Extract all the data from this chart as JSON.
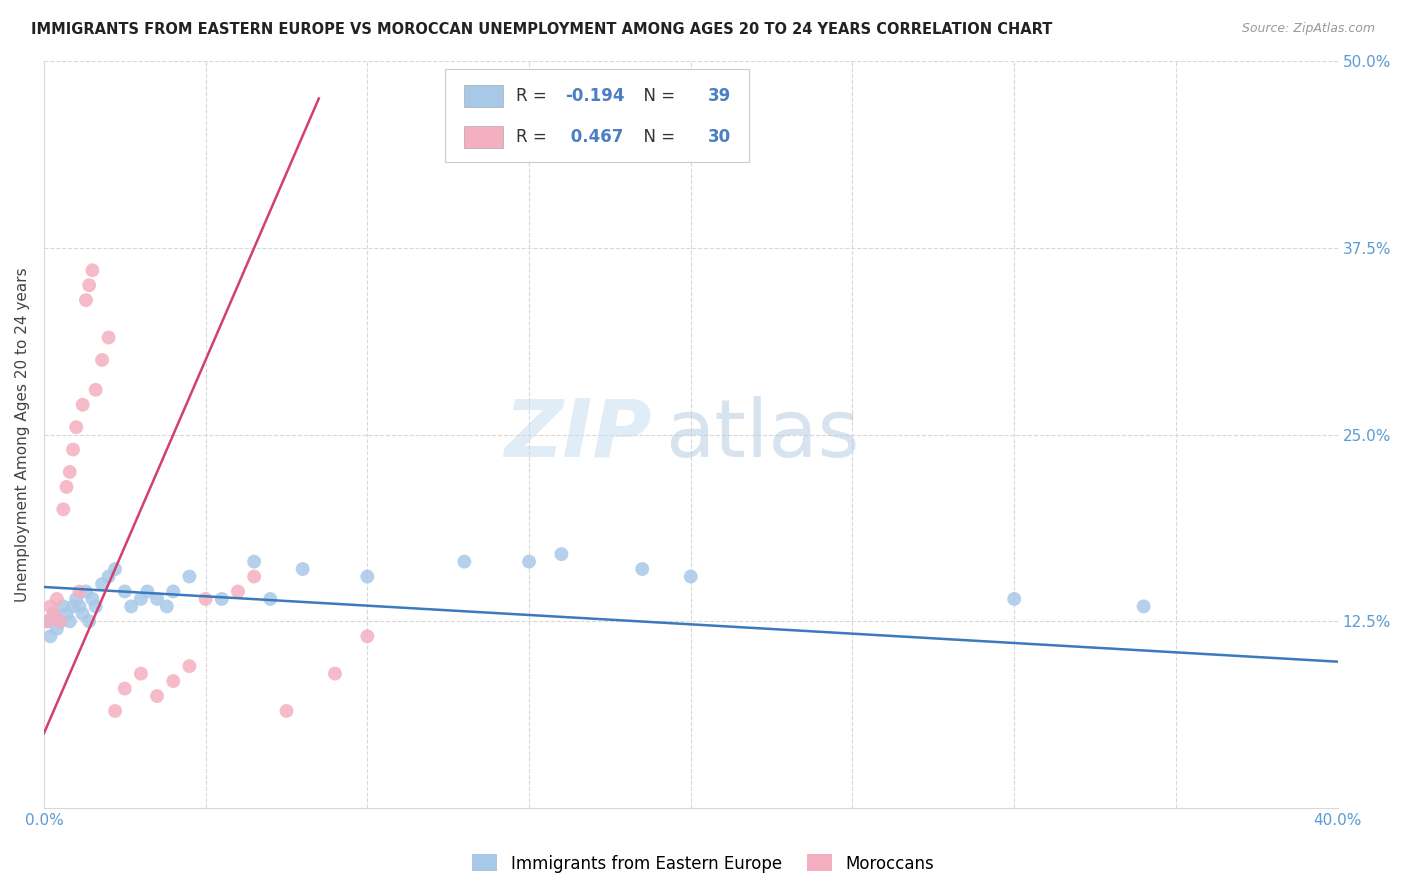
{
  "title": "IMMIGRANTS FROM EASTERN EUROPE VS MOROCCAN UNEMPLOYMENT AMONG AGES 20 TO 24 YEARS CORRELATION CHART",
  "source": "Source: ZipAtlas.com",
  "ylabel": "Unemployment Among Ages 20 to 24 years",
  "xlim": [
    0.0,
    0.4
  ],
  "ylim": [
    0.0,
    0.5
  ],
  "xtick_values": [
    0.0,
    0.05,
    0.1,
    0.15,
    0.2,
    0.25,
    0.3,
    0.35,
    0.4
  ],
  "xtick_labels": [
    "0.0%",
    "",
    "",
    "",
    "",
    "",
    "",
    "",
    "40.0%"
  ],
  "ytick_right_values": [
    0.5,
    0.375,
    0.25,
    0.125,
    0.0
  ],
  "ytick_right_labels": [
    "50.0%",
    "37.5%",
    "25.0%",
    "12.5%",
    ""
  ],
  "blue_scatter_color": "#a8c8e8",
  "pink_scatter_color": "#f4b0c0",
  "blue_line_color": "#3a7abd",
  "pink_line_color": "#d04070",
  "legend_blue_label": "Immigrants from Eastern Europe",
  "legend_pink_label": "Moroccans",
  "R_blue": -0.194,
  "N_blue": 39,
  "R_pink": 0.467,
  "N_pink": 30,
  "watermark_zip": "ZIP",
  "watermark_atlas": "atlas",
  "blue_scatter_x": [
    0.001,
    0.002,
    0.003,
    0.004,
    0.005,
    0.006,
    0.007,
    0.008,
    0.009,
    0.01,
    0.011,
    0.012,
    0.013,
    0.014,
    0.015,
    0.016,
    0.018,
    0.02,
    0.022,
    0.025,
    0.027,
    0.03,
    0.032,
    0.035,
    0.038,
    0.04,
    0.045,
    0.055,
    0.065,
    0.07,
    0.08,
    0.1,
    0.13,
    0.15,
    0.16,
    0.185,
    0.2,
    0.3,
    0.34
  ],
  "blue_scatter_y": [
    0.125,
    0.115,
    0.13,
    0.12,
    0.125,
    0.135,
    0.13,
    0.125,
    0.135,
    0.14,
    0.135,
    0.13,
    0.145,
    0.125,
    0.14,
    0.135,
    0.15,
    0.155,
    0.16,
    0.145,
    0.135,
    0.14,
    0.145,
    0.14,
    0.135,
    0.145,
    0.155,
    0.14,
    0.165,
    0.14,
    0.16,
    0.155,
    0.165,
    0.165,
    0.17,
    0.16,
    0.155,
    0.14,
    0.135
  ],
  "pink_scatter_x": [
    0.001,
    0.002,
    0.003,
    0.004,
    0.005,
    0.006,
    0.007,
    0.008,
    0.009,
    0.01,
    0.011,
    0.012,
    0.013,
    0.014,
    0.015,
    0.016,
    0.018,
    0.02,
    0.022,
    0.025,
    0.03,
    0.035,
    0.04,
    0.045,
    0.05,
    0.06,
    0.065,
    0.075,
    0.09,
    0.1
  ],
  "pink_scatter_y": [
    0.125,
    0.135,
    0.13,
    0.14,
    0.125,
    0.2,
    0.215,
    0.225,
    0.24,
    0.255,
    0.145,
    0.27,
    0.34,
    0.35,
    0.36,
    0.28,
    0.3,
    0.315,
    0.065,
    0.08,
    0.09,
    0.075,
    0.085,
    0.095,
    0.14,
    0.145,
    0.155,
    0.065,
    0.09,
    0.115
  ],
  "pink_line_x0": 0.0,
  "pink_line_y0": 0.05,
  "pink_line_x1": 0.085,
  "pink_line_y1": 0.475,
  "blue_line_x0": 0.0,
  "blue_line_y0": 0.148,
  "blue_line_x1": 0.4,
  "blue_line_y1": 0.098
}
